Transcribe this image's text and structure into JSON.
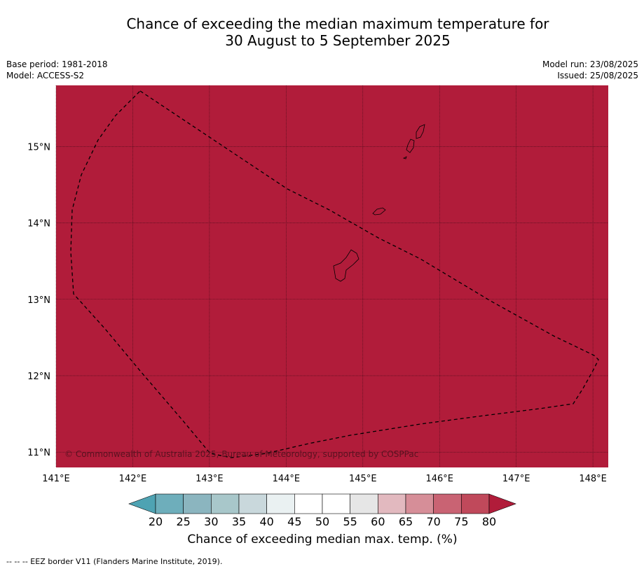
{
  "title_line1": "Chance of exceeding the median maximum temperature for",
  "title_line2": "30 August to 5 September 2025",
  "base_period": "Base period: 1981-2018",
  "model": "Model: ACCESS-S2",
  "model_run": "Model run: 23/08/2025",
  "issued": "Issued: 25/08/2025",
  "copyright": "© Commonwealth of Australia 2025, Bureau of Meteorology, supported by COSPPac",
  "footnote": "--  --  -- EEZ border V11 (Flanders Marine Institute, 2019).",
  "map": {
    "lon_range": [
      141,
      148.2
    ],
    "lat_range": [
      10.8,
      15.8
    ],
    "lon_ticks": [
      141,
      142,
      143,
      144,
      145,
      146,
      147,
      148
    ],
    "lon_tick_labels": [
      "141°E",
      "142°E",
      "143°E",
      "144°E",
      "145°E",
      "146°E",
      "147°E",
      "148°E"
    ],
    "lat_ticks": [
      15,
      14,
      13,
      12,
      11
    ],
    "lat_tick_labels": [
      "15°N",
      "14°N",
      "13°N",
      "12°N",
      "11°N"
    ],
    "fill_color": "#b11c3a",
    "fill_category": "80"
  },
  "colorbar": {
    "title": "Chance of exceeding median max. temp. (%)",
    "labels": [
      "20",
      "25",
      "30",
      "35",
      "40",
      "45",
      "50",
      "55",
      "60",
      "65",
      "70",
      "75",
      "80"
    ],
    "colors": [
      "#4ea3b3",
      "#6eaebb",
      "#8bb5bf",
      "#a8c7ca",
      "#c9d8dc",
      "#eaf1f2",
      "#ffffff",
      "#ffffff",
      "#e6e6e6",
      "#e2b9bf",
      "#d68e98",
      "#c96373",
      "#c0495b",
      "#b11c3a"
    ]
  }
}
